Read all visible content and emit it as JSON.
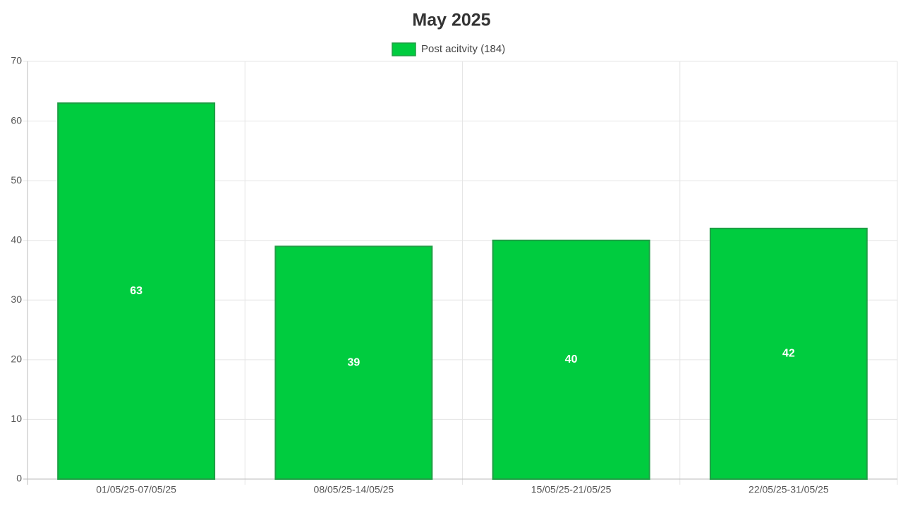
{
  "chart_data": {
    "type": "bar",
    "title": "May 2025",
    "categories": [
      "01/05/25-07/05/25",
      "08/05/25-14/05/25",
      "15/05/25-21/05/25",
      "22/05/25-31/05/25"
    ],
    "series": [
      {
        "name": "Post acitvity (184)",
        "color": "#00cc3f",
        "border_color": "#1f9e45",
        "values": [
          63,
          39,
          40,
          42
        ]
      }
    ],
    "ylim": [
      0,
      70
    ],
    "yticks": [
      0,
      10,
      20,
      30,
      40,
      50,
      60,
      70
    ],
    "grid": true,
    "legend": "top"
  }
}
